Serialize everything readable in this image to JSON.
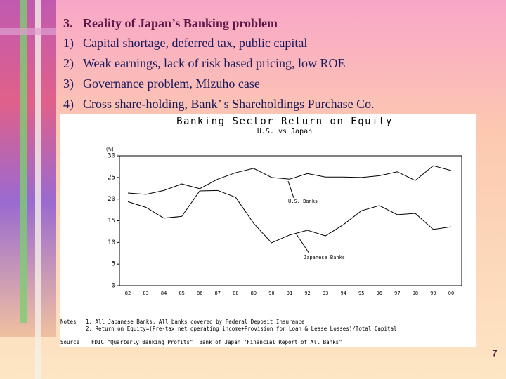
{
  "slide": {
    "heading": {
      "number": "3.",
      "text": "Reality of Japan’s Banking problem"
    },
    "items": [
      {
        "number": "1)",
        "text": "Capital shortage, deferred tax, public capital"
      },
      {
        "number": "2)",
        "text": "Weak earnings, lack of risk based pricing, low ROE"
      },
      {
        "number": "3)",
        "text": "Governance problem, Mizuho case"
      },
      {
        "number": "4)",
        "text": "Cross share-holding, Bank’ s Shareholdings Purchase Co."
      }
    ],
    "page_number": "7"
  },
  "chart_data": {
    "type": "line",
    "title": "Banking Sector Return on Equity",
    "subtitle": "U.S. vs Japan",
    "y_label": "(%)",
    "categories": [
      "82",
      "83",
      "84",
      "85",
      "86",
      "87",
      "88",
      "89",
      "90",
      "91",
      "92",
      "93",
      "94",
      "95",
      "96",
      "97",
      "98",
      "99",
      "00"
    ],
    "series": [
      {
        "name": "U.S. Banks",
        "color": "#000000",
        "values": [
          21.4,
          21.1,
          22,
          23.5,
          22.4,
          24.6,
          26.1,
          27.1,
          25,
          24.6,
          25.9,
          25.1,
          25.1,
          25,
          25.4,
          26.3,
          24.3,
          27.7,
          26.6
        ]
      },
      {
        "name": "Japanese Banks",
        "color": "#000000",
        "values": [
          19.4,
          18.1,
          15.6,
          16,
          21.9,
          22,
          20.4,
          14.4,
          9.9,
          11.7,
          12.8,
          11.5,
          14.1,
          17.3,
          18.5,
          16.4,
          16.7,
          13,
          13.6
        ]
      }
    ],
    "ylim": [
      0,
      30
    ],
    "yticks": [
      0,
      5,
      10,
      15,
      20,
      25,
      30
    ],
    "notes_label": "Notes",
    "notes": [
      "1. All Japanese Banks, All banks covered by Federal Deposit Insurance",
      "2. Return on Equity=(Pre-tax net operating income+Provision for Loan & Lease Losses)/Total Capital"
    ],
    "source_label": "Source",
    "source": "FDIC \"Quarterly Banking Profits\"  Bank of Japan \"Financial Report of All Banks\""
  }
}
